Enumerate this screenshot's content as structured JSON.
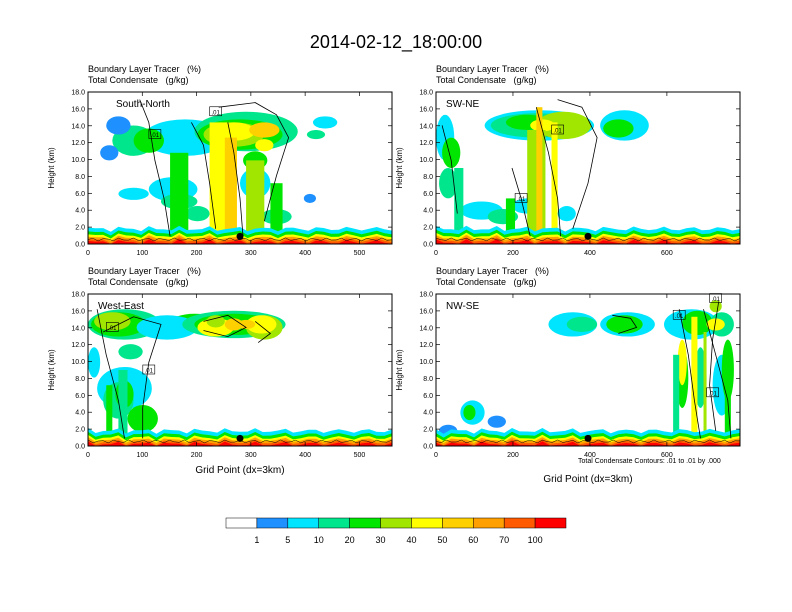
{
  "title": "2014-02-12_18:00:00",
  "footnote": "Total Condensate Contours: .01 to .01 by .000",
  "x_axis_label": "Grid Point (dx=3km)",
  "panel_label_line1": "Boundary Layer Tracer   (%)",
  "panel_label_line2": "Total Condensate   (g/kg)",
  "colorbar": {
    "labels": [
      "1",
      "5",
      "10",
      "20",
      "30",
      "40",
      "50",
      "60",
      "70",
      "100"
    ],
    "colors": [
      "#ffffff",
      "#1e90ff",
      "#00e5ff",
      "#00e68c",
      "#00e600",
      "#a0e600",
      "#ffff00",
      "#ffd000",
      "#ffa000",
      "#ff5a00",
      "#ff0000"
    ]
  },
  "chart_data": [
    {
      "type": "heatmap",
      "panel_name": "South-North",
      "ylabel": "Height (km)",
      "ylim": [
        0,
        18
      ],
      "xlim": [
        0,
        560
      ],
      "yticks": [
        "0.0",
        "2.0",
        "4.0",
        "6.0",
        "8.0",
        "10.0",
        "12.0",
        "14.0",
        "16.0",
        "18.0"
      ],
      "xticks": [
        "0",
        "100",
        "200",
        "300",
        "400",
        "500"
      ],
      "contour_labels": [
        ".01",
        ".01"
      ],
      "marker_x": 280
    },
    {
      "type": "heatmap",
      "panel_name": "SW-NE",
      "ylabel": "Height (km)",
      "ylim": [
        0,
        18
      ],
      "xlim": [
        0,
        790
      ],
      "yticks": [
        "0.0",
        "2.0",
        "4.0",
        "6.0",
        "8.0",
        "10.0",
        "12.0",
        "14.0",
        "16.0",
        "18.0"
      ],
      "xticks": [
        "0",
        "200",
        "400",
        "600"
      ],
      "contour_labels": [
        ".01",
        ".01"
      ],
      "marker_x": 395
    },
    {
      "type": "heatmap",
      "panel_name": "West-East",
      "ylabel": "Height (km)",
      "xlabel": "Grid Point (dx=3km)",
      "ylim": [
        0,
        18
      ],
      "xlim": [
        0,
        560
      ],
      "yticks": [
        "0.0",
        "2.0",
        "4.0",
        "6.0",
        "8.0",
        "10.0",
        "12.0",
        "14.0",
        "16.0",
        "18.0"
      ],
      "xticks": [
        "0",
        "100",
        "200",
        "300",
        "400",
        "500"
      ],
      "contour_labels": [
        ".01",
        ".01"
      ],
      "marker_x": 280
    },
    {
      "type": "heatmap",
      "panel_name": "NW-SE",
      "ylabel": "Height (km)",
      "xlabel": "Grid Point (dx=3km)",
      "ylim": [
        0,
        18
      ],
      "xlim": [
        0,
        790
      ],
      "yticks": [
        "0.0",
        "2.0",
        "4.0",
        "6.0",
        "8.0",
        "10.0",
        "12.0",
        "14.0",
        "16.0",
        "18.0"
      ],
      "xticks": [
        "0",
        "200",
        "400",
        "600"
      ],
      "contour_labels": [
        ".01",
        ".01",
        ".01"
      ],
      "marker_x": 395
    }
  ]
}
